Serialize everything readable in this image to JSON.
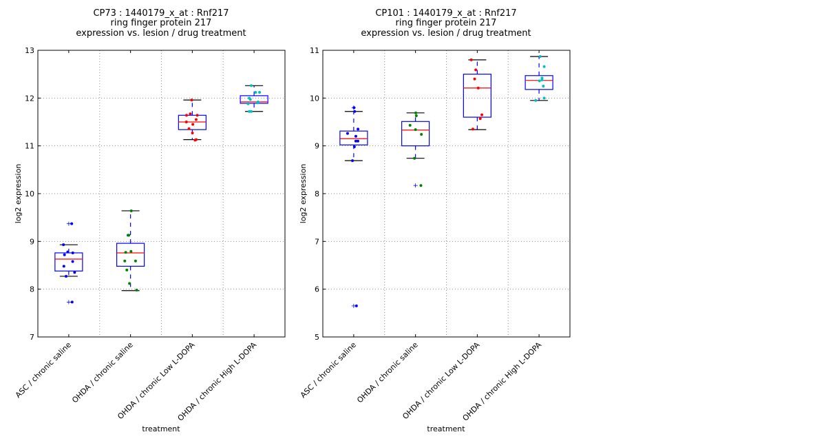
{
  "chart_data": [
    {
      "type": "box",
      "title_lines": [
        "CP73 : 1440179_x_at : Rnf217",
        "ring finger protein 217",
        "expression vs. lesion / drug treatment"
      ],
      "xlabel": "treatment",
      "ylabel": "log2 expression",
      "ylim": [
        7,
        13
      ],
      "yticks": [
        7,
        8,
        9,
        10,
        11,
        12,
        13
      ],
      "grid": true,
      "categories": [
        "ASC / chronic saline",
        "OHDA / chronic saline",
        "OHDA / chronic Low L-DOPA",
        "OHDA / chronic High L-DOPA"
      ],
      "point_colors": [
        "#0000ff",
        "#008000",
        "#ff0000",
        "#00bfbf"
      ],
      "boxes": [
        {
          "whisker_low": 8.27,
          "q1": 8.38,
          "median": 8.63,
          "q3": 8.76,
          "whisker_high": 8.93,
          "outliers": [
            9.37,
            7.73
          ],
          "points": [
            9.37,
            8.93,
            8.78,
            8.76,
            8.72,
            8.58,
            8.48,
            8.35,
            8.27,
            7.73
          ]
        },
        {
          "whisker_low": 7.97,
          "q1": 8.48,
          "median": 8.76,
          "q3": 8.96,
          "whisker_high": 9.64,
          "outliers": [],
          "points": [
            9.64,
            9.13,
            9.13,
            8.79,
            8.77,
            8.59,
            8.59,
            8.4,
            8.12,
            7.98
          ]
        },
        {
          "whisker_low": 11.13,
          "q1": 11.34,
          "median": 11.5,
          "q3": 11.64,
          "whisker_high": 11.96,
          "outliers": [],
          "points": [
            11.96,
            11.67,
            11.64,
            11.64,
            11.55,
            11.5,
            11.45,
            11.36,
            11.27,
            11.13,
            11.12
          ]
        },
        {
          "whisker_low": 11.72,
          "q1": 11.89,
          "median": 11.92,
          "q3": 12.05,
          "whisker_high": 12.26,
          "outliers": [],
          "points": [
            12.26,
            12.12,
            12.12,
            12.0,
            11.97,
            11.92,
            11.9,
            11.88,
            11.72,
            11.72
          ]
        }
      ]
    },
    {
      "type": "box",
      "title_lines": [
        "CP101 : 1440179_x_at : Rnf217",
        "ring finger protein 217",
        "expression vs. lesion / drug treatment"
      ],
      "xlabel": "treatment",
      "ylabel": "log2 expression",
      "ylim": [
        5,
        11
      ],
      "yticks": [
        5,
        6,
        7,
        8,
        9,
        10,
        11
      ],
      "grid": true,
      "categories": [
        "ASC / chronic saline",
        "OHDA / chronic saline",
        "OHDA / chronic Low L-DOPA",
        "OHDA / chronic High L-DOPA"
      ],
      "point_colors": [
        "#0000ff",
        "#008000",
        "#ff0000",
        "#00bfbf"
      ],
      "boxes": [
        {
          "whisker_low": 8.69,
          "q1": 9.02,
          "median": 9.15,
          "q3": 9.31,
          "whisker_high": 9.72,
          "outliers": [
            9.8,
            5.65
          ],
          "points": [
            9.8,
            9.72,
            9.35,
            9.26,
            9.2,
            9.1,
            9.1,
            8.98,
            8.69,
            5.65
          ]
        },
        {
          "whisker_low": 8.74,
          "q1": 9.0,
          "median": 9.33,
          "q3": 9.51,
          "whisker_high": 9.69,
          "outliers": [
            8.17
          ],
          "points": [
            9.69,
            9.63,
            9.43,
            9.34,
            9.24,
            8.74,
            8.17
          ]
        },
        {
          "whisker_low": 9.34,
          "q1": 9.6,
          "median": 10.21,
          "q3": 10.5,
          "whisker_high": 10.8,
          "outliers": [],
          "points": [
            10.8,
            10.59,
            10.4,
            10.21,
            9.65,
            9.57,
            9.35
          ]
        },
        {
          "whisker_low": 9.95,
          "q1": 10.18,
          "median": 10.37,
          "q3": 10.47,
          "whisker_high": 10.87,
          "outliers": [],
          "points": [
            10.87,
            10.66,
            10.42,
            10.38,
            10.36,
            10.25,
            10.0,
            9.95
          ]
        }
      ]
    }
  ]
}
